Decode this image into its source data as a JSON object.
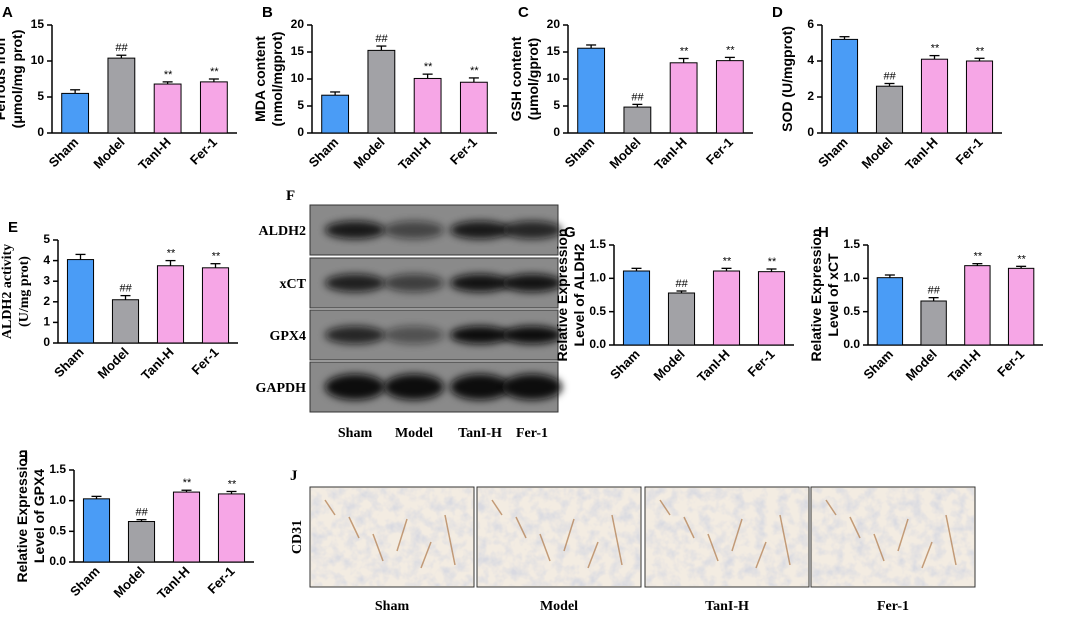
{
  "chart_data": [
    {
      "type": "bar",
      "panel": "A",
      "ylabel": [
        "Ferrous iron",
        "(μmol/mg prot)"
      ],
      "categories": [
        "Sham",
        "Model",
        "TanI-H",
        "Fer-1"
      ],
      "values": [
        5.5,
        10.4,
        6.8,
        7.1
      ],
      "errors": [
        0.5,
        0.4,
        0.3,
        0.4
      ],
      "annotations": [
        null,
        "##",
        "**",
        "**"
      ],
      "colors": [
        "#4a9cf6",
        "#a2a2a6",
        "#f6a6e6",
        "#f6a6e6"
      ],
      "ylim": [
        0,
        15
      ],
      "yticks": [
        0,
        5,
        10,
        15
      ]
    },
    {
      "type": "bar",
      "panel": "B",
      "ylabel": [
        "MDA content",
        "(nmol/mgprot)"
      ],
      "categories": [
        "Sham",
        "Model",
        "TanI-H",
        "Fer-1"
      ],
      "values": [
        7.0,
        15.3,
        10.1,
        9.4
      ],
      "errors": [
        0.6,
        0.8,
        0.8,
        0.8
      ],
      "annotations": [
        null,
        "##",
        "**",
        "**"
      ],
      "colors": [
        "#4a9cf6",
        "#a2a2a6",
        "#f6a6e6",
        "#f6a6e6"
      ],
      "ylim": [
        0,
        20
      ],
      "yticks": [
        0,
        5,
        10,
        15,
        20
      ]
    },
    {
      "type": "bar",
      "panel": "C",
      "ylabel": [
        "GSH content",
        "(μmol/gprot)"
      ],
      "categories": [
        "Sham",
        "Model",
        "TanI-H",
        "Fer-1"
      ],
      "values": [
        15.7,
        4.8,
        13.0,
        13.4
      ],
      "errors": [
        0.6,
        0.5,
        0.8,
        0.6
      ],
      "annotations": [
        null,
        "##",
        "**",
        "**"
      ],
      "colors": [
        "#4a9cf6",
        "#a2a2a6",
        "#f6a6e6",
        "#f6a6e6"
      ],
      "ylim": [
        0,
        20
      ],
      "yticks": [
        0,
        5,
        10,
        15,
        20
      ]
    },
    {
      "type": "bar",
      "panel": "D",
      "ylabel": [
        "SOD (U/mgprot)"
      ],
      "categories": [
        "Sham",
        "Model",
        "TanI-H",
        "Fer-1"
      ],
      "values": [
        5.2,
        2.6,
        4.1,
        4.0
      ],
      "errors": [
        0.15,
        0.15,
        0.2,
        0.15
      ],
      "annotations": [
        null,
        "##",
        "**",
        "**"
      ],
      "colors": [
        "#4a9cf6",
        "#a2a2a6",
        "#f6a6e6",
        "#f6a6e6"
      ],
      "ylim": [
        0,
        6
      ],
      "yticks": [
        0,
        2,
        4,
        6
      ]
    },
    {
      "type": "bar",
      "panel": "E",
      "ylabel": [
        "ALDH2 activity",
        "(U/mg prot)"
      ],
      "categories": [
        "Sham",
        "Model",
        "TanI-H",
        "Fer-1"
      ],
      "values": [
        4.05,
        2.1,
        3.75,
        3.65
      ],
      "errors": [
        0.25,
        0.2,
        0.25,
        0.2
      ],
      "annotations": [
        null,
        "##",
        "**",
        "**"
      ],
      "colors": [
        "#4a9cf6",
        "#a2a2a6",
        "#f6a6e6",
        "#f6a6e6"
      ],
      "ylim": [
        0,
        5
      ],
      "yticks": [
        0,
        1,
        2,
        3,
        4,
        5
      ]
    },
    {
      "type": "bar",
      "panel": "G",
      "ylabel": [
        "Relative Expression",
        "Level of  ALDH2"
      ],
      "categories": [
        "Sham",
        "Model",
        "TanI-H",
        "Fer-1"
      ],
      "values": [
        1.11,
        0.78,
        1.11,
        1.1
      ],
      "errors": [
        0.04,
        0.03,
        0.04,
        0.04
      ],
      "annotations": [
        null,
        "##",
        "**",
        "**"
      ],
      "colors": [
        "#4a9cf6",
        "#a2a2a6",
        "#f6a6e6",
        "#f6a6e6"
      ],
      "ylim": [
        0,
        1.5
      ],
      "yticks": [
        {
          "value": 0,
          "label": "0.0"
        },
        0.5,
        {
          "value": 1,
          "label": "1.0"
        },
        1.5
      ]
    },
    {
      "type": "bar",
      "panel": "H",
      "ylabel": [
        "Relative Expression",
        "Level of  xCT"
      ],
      "categories": [
        "Sham",
        "Model",
        "TanI-H",
        "Fer-1"
      ],
      "values": [
        1.01,
        0.66,
        1.19,
        1.15
      ],
      "errors": [
        0.04,
        0.05,
        0.03,
        0.03
      ],
      "annotations": [
        null,
        "##",
        "**",
        "**"
      ],
      "colors": [
        "#4a9cf6",
        "#a2a2a6",
        "#f6a6e6",
        "#f6a6e6"
      ],
      "ylim": [
        0,
        1.5
      ],
      "yticks": [
        {
          "value": 0,
          "label": "0.0"
        },
        0.5,
        {
          "value": 1,
          "label": "1.0"
        },
        1.5
      ]
    },
    {
      "type": "bar",
      "panel": "I",
      "ylabel": [
        "Relative Expression",
        "Level of  GPX4"
      ],
      "categories": [
        "Sham",
        "Model",
        "TanI-H",
        "Fer-1"
      ],
      "values": [
        1.03,
        0.66,
        1.14,
        1.11
      ],
      "errors": [
        0.04,
        0.03,
        0.03,
        0.04
      ],
      "annotations": [
        null,
        "##",
        "**",
        "**"
      ],
      "colors": [
        "#4a9cf6",
        "#a2a2a6",
        "#f6a6e6",
        "#f6a6e6"
      ],
      "ylim": [
        0,
        1.5
      ],
      "yticks": [
        {
          "value": 0,
          "label": "0.0"
        },
        0.5,
        {
          "value": 1,
          "label": "1.0"
        },
        1.5
      ]
    }
  ],
  "blot": {
    "panel": "F",
    "bands": [
      "ALDH2",
      "xCT",
      "GPX4",
      "GAPDH"
    ],
    "groups": [
      "Sham",
      "Model",
      "TanI-H",
      "Fer-1"
    ]
  },
  "histology": {
    "panel": "J",
    "stain": "CD31",
    "groups": [
      "Sham",
      "Model",
      "TanI-H",
      "Fer-1"
    ]
  }
}
